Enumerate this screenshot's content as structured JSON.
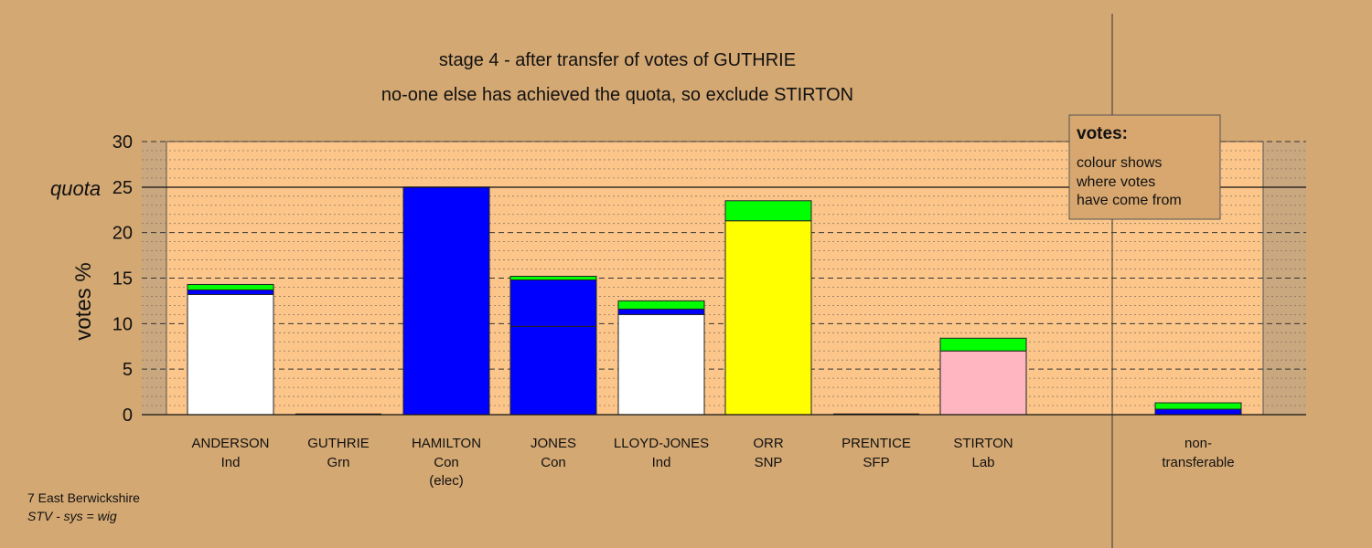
{
  "chart_data": {
    "type": "bar",
    "title": "stage 4 - after transfer of votes of GUTHRIE",
    "subtitle": "no-one else has achieved the quota, so exclude STIRTON",
    "ylabel": "votes %",
    "ylim": [
      0,
      30
    ],
    "yticks": [
      "0",
      "5",
      "10",
      "15",
      "20",
      "25",
      "30"
    ],
    "quota": 25,
    "quota_label": "quota",
    "grid": true,
    "categories": [
      {
        "name": "ANDERSON",
        "party": "Ind",
        "note": ""
      },
      {
        "name": "GUTHRIE",
        "party": "Grn",
        "note": ""
      },
      {
        "name": "HAMILTON",
        "party": "Con",
        "note": "(elec)"
      },
      {
        "name": "JONES",
        "party": "Con",
        "note": ""
      },
      {
        "name": "LLOYD-JONES",
        "party": "Ind",
        "note": ""
      },
      {
        "name": "ORR",
        "party": "SNP",
        "note": ""
      },
      {
        "name": "PRENTICE",
        "party": "SFP",
        "note": ""
      },
      {
        "name": "STIRTON",
        "party": "Lab",
        "note": ""
      }
    ],
    "nontransferable": {
      "name": "non-",
      "party": "transferable"
    },
    "stacks": [
      [
        {
          "value": 13.2,
          "color": "#ffffff"
        },
        {
          "value": 0.5,
          "color": "#0000ff"
        },
        {
          "value": 0.6,
          "color": "#00ff00"
        }
      ],
      [],
      [
        {
          "value": 25.0,
          "color": "#0000ff"
        }
      ],
      [
        {
          "value": 9.7,
          "color": "#0000ff"
        },
        {
          "value": 5.1,
          "color": "#0000ff"
        },
        {
          "value": 0.4,
          "color": "#00ff00"
        }
      ],
      [
        {
          "value": 11.0,
          "color": "#ffffff"
        },
        {
          "value": 0.6,
          "color": "#0000ff"
        },
        {
          "value": 0.9,
          "color": "#00ff00"
        }
      ],
      [
        {
          "value": 21.3,
          "color": "#ffff00"
        },
        {
          "value": 2.2,
          "color": "#00ff00"
        }
      ],
      [],
      [
        {
          "value": 7.0,
          "color": "#ffb6c1"
        },
        {
          "value": 1.4,
          "color": "#00ff00"
        }
      ],
      [
        {
          "value": 0.6,
          "color": "#0000ff"
        },
        {
          "value": 0.7,
          "color": "#00ff00"
        }
      ]
    ],
    "legend": {
      "title": "votes:",
      "lines": [
        "colour shows",
        "where votes",
        "have come from"
      ],
      "placement": "top-right"
    }
  },
  "footer": {
    "line1": "7 East Berwickshire",
    "line2": "STV - sys = wig"
  },
  "colors": {
    "background": "#d4a873",
    "plot_area": "#fcc68a",
    "legend_box": "#d8a76f"
  }
}
